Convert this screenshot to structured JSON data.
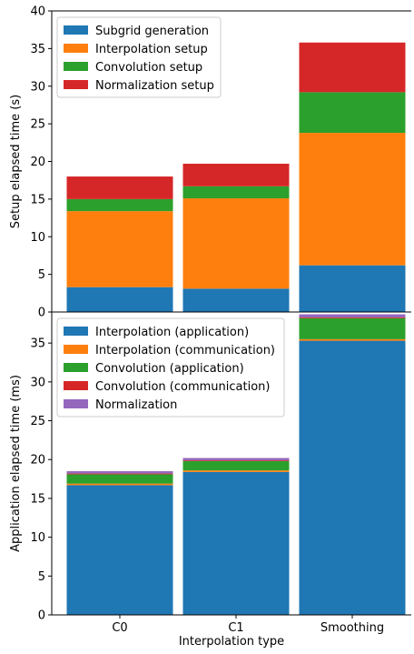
{
  "chart_data": [
    {
      "type": "bar",
      "stacked": true,
      "categories": [
        "C0",
        "C1",
        "Smoothing"
      ],
      "ylabel": "Setup elapsed time (s)",
      "ylim": [
        0,
        40
      ],
      "yticks": [
        0,
        5,
        10,
        15,
        20,
        25,
        30,
        35,
        40
      ],
      "legend_position": "top-left",
      "series": [
        {
          "name": "Subgrid generation",
          "color": "#1f77b4",
          "values": [
            3.3,
            3.1,
            6.2
          ]
        },
        {
          "name": "Interpolation setup",
          "color": "#ff7f0e",
          "values": [
            10.1,
            12.0,
            17.6
          ]
        },
        {
          "name": "Convolution setup",
          "color": "#2ca02c",
          "values": [
            1.6,
            1.6,
            5.4
          ]
        },
        {
          "name": "Normalization setup",
          "color": "#d62728",
          "values": [
            3.0,
            3.0,
            6.6
          ]
        }
      ]
    },
    {
      "type": "bar",
      "stacked": true,
      "categories": [
        "C0",
        "C1",
        "Smoothing"
      ],
      "xlabel": "Interpolation type",
      "ylabel": "Application elapsed time (ms)",
      "ylim": [
        0,
        39
      ],
      "yticks": [
        0,
        5,
        10,
        15,
        20,
        25,
        30,
        35
      ],
      "legend_position": "top-left",
      "series": [
        {
          "name": "Interpolation (application)",
          "color": "#1f77b4",
          "values": [
            16.7,
            18.4,
            35.3
          ]
        },
        {
          "name": "Interpolation (communication)",
          "color": "#ff7f0e",
          "values": [
            0.2,
            0.2,
            0.2
          ]
        },
        {
          "name": "Convolution (application)",
          "color": "#2ca02c",
          "values": [
            1.2,
            1.2,
            2.7
          ]
        },
        {
          "name": "Convolution (communication)",
          "color": "#d62728",
          "values": [
            0.1,
            0.1,
            0.1
          ]
        },
        {
          "name": "Normalization",
          "color": "#9467bd",
          "values": [
            0.3,
            0.3,
            0.4
          ]
        }
      ]
    }
  ]
}
